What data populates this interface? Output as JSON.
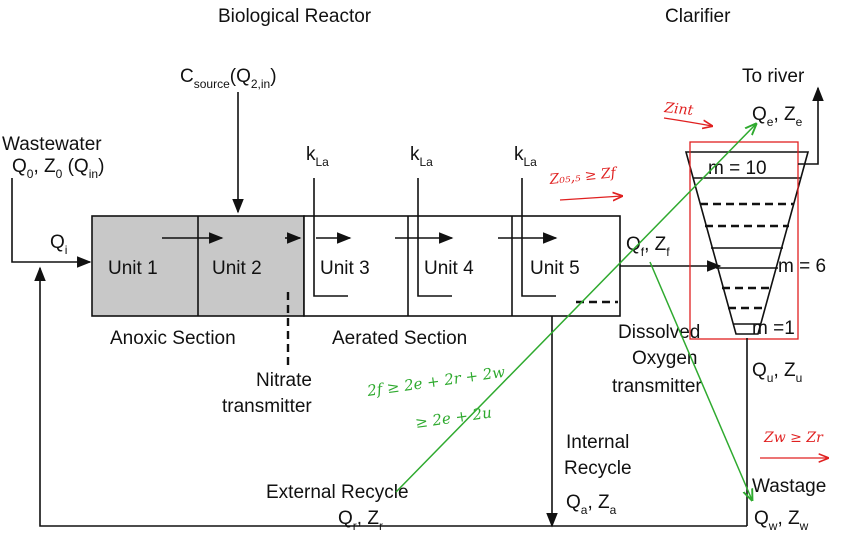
{
  "headers": {
    "reactor": "Biological Reactor",
    "clarifier": "Clarifier"
  },
  "carbon_source": {
    "main": "C",
    "sub": "source",
    "args": "(Q",
    "args_sub": "2,in",
    "close": ")"
  },
  "inlet": {
    "title": "Wastewater",
    "vars": "Q",
    "v0": "0",
    "comma": ", Z",
    "z0": "0",
    "qin": " (Q",
    "qin_sub": "in",
    "qin_close": ")"
  },
  "qi": {
    "main": "Q",
    "sub": "i"
  },
  "kla": {
    "main": "k",
    "sub": "La"
  },
  "units": [
    "Unit 1",
    "Unit 2",
    "Unit 3",
    "Unit 4",
    "Unit 5"
  ],
  "sections": {
    "anoxic": "Anoxic Section",
    "aerated": "Aerated Section"
  },
  "nitrate": {
    "line1": "Nitrate",
    "line2": "transmitter"
  },
  "feed": {
    "q": "Q",
    "qs": "f",
    "comma": ", Z",
    "zs": "f"
  },
  "outlet": {
    "title": "To river",
    "q": "Q",
    "qs": "e",
    "comma": ", Z",
    "zs": "e"
  },
  "layers": {
    "top": "m = 10",
    "mid": "m = 6",
    "bottom": "m =1"
  },
  "do_transmitter": {
    "line1": "Dissolved",
    "line2": "Oxygen",
    "line3": "transmitter"
  },
  "underflow": {
    "q": "Q",
    "qs": "u",
    "comma": ", Z",
    "zs": "u"
  },
  "internal_recycle": {
    "line1": "Internal",
    "line2": "Recycle",
    "q": "Q",
    "qs": "a",
    "comma": ", Z",
    "zs": "a"
  },
  "external_recycle": {
    "title": "External Recycle",
    "q": "Q",
    "qs": "r",
    "comma": ", Z",
    "zs": "r"
  },
  "wastage": {
    "title": "Wastage",
    "q": "Q",
    "qs": "w",
    "comma": ", Z",
    "zs": "w"
  },
  "annotations": {
    "z_int": "Zint",
    "z_eq": "Z₀₅,₅ ≥ Zf",
    "zw_zr": "Zw ≥ Zr",
    "mass_balance_1": "2f ≥ 2e + 2r + 2w",
    "mass_balance_2": "≥ 2e + 2u"
  },
  "colors": {
    "anoxic_fill": "#c8c8c8",
    "annotation_green": "#2faa2f",
    "annotation_red": "#e02020",
    "ink": "#111111"
  }
}
